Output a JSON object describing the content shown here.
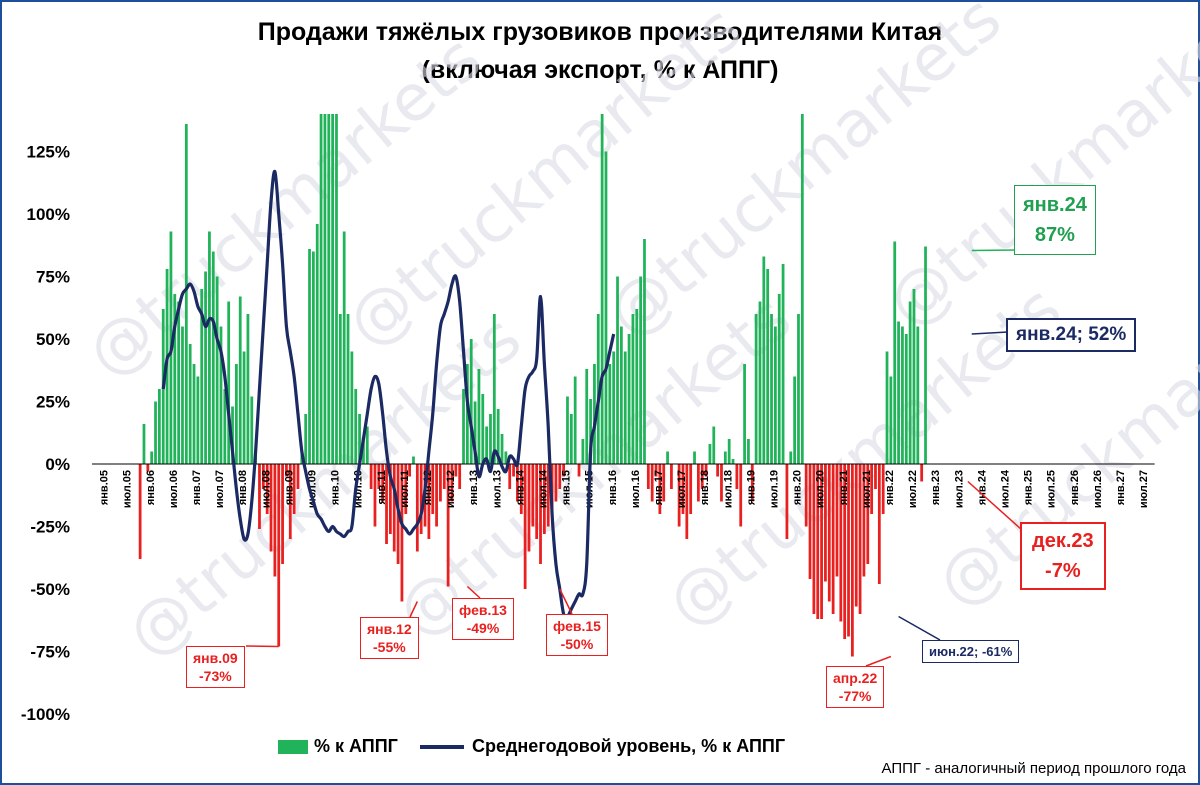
{
  "chart_data": {
    "type": "bar",
    "title": "Продажи тяжёлых грузовиков производителями Китая",
    "subtitle": "(включая экспорт, % к АППГ)",
    "ylim": [
      -100,
      140
    ],
    "yticks": [
      "125%",
      "100%",
      "75%",
      "50%",
      "25%",
      "0%",
      "-25%",
      "-50%",
      "-75%",
      "-100%"
    ],
    "ytick_values": [
      125,
      100,
      75,
      50,
      25,
      0,
      -25,
      -50,
      -75,
      -100
    ],
    "xtick_labels": [
      "янв.05",
      "июл.05",
      "янв.06",
      "июл.06",
      "янв.07",
      "июл.07",
      "янв.08",
      "июл.08",
      "янв.09",
      "июл.09",
      "янв.10",
      "июл.10",
      "янв.11",
      "июл.11",
      "янв.12",
      "июл.12",
      "янв.13",
      "июл.13",
      "янв.14",
      "июл.14",
      "янв.15",
      "июл.15",
      "янв.16",
      "июл.16",
      "янв.17",
      "июл.17",
      "янв.18",
      "июл.18",
      "янв.19",
      "июл.19",
      "янв.20",
      "июл.20",
      "янв.21",
      "июл.21",
      "янв.22",
      "июл.22",
      "янв.23",
      "июл.23",
      "янв.24",
      "июл.24",
      "янв.25",
      "июл.25",
      "янв.26",
      "июл.26",
      "янв.27",
      "июл.27"
    ],
    "grid": false,
    "series": [
      {
        "name": "% к АППГ",
        "kind": "bar",
        "x_start": "янв.05",
        "values": [
          0,
          0,
          0,
          0,
          0,
          0,
          0,
          0,
          0,
          0,
          0,
          0,
          -38,
          16,
          -3,
          5,
          25,
          30,
          62,
          78,
          93,
          68,
          65,
          55,
          136,
          48,
          40,
          35,
          70,
          77,
          93,
          85,
          75,
          55,
          30,
          65,
          23,
          40,
          67,
          45,
          60,
          27,
          5,
          -26,
          -10,
          -20,
          -35,
          -45,
          -73,
          -40,
          -5,
          -30,
          -20,
          -10,
          5,
          20,
          86,
          85,
          96,
          140,
          140,
          140,
          140,
          140,
          60,
          93,
          60,
          45,
          30,
          20,
          10,
          15,
          -10,
          -25,
          -10,
          -15,
          -32,
          -28,
          -35,
          -40,
          -55,
          -20,
          -5,
          3,
          -35,
          -28,
          -25,
          -30,
          -20,
          -25,
          -15,
          -10,
          -49,
          -15,
          -5,
          -10,
          30,
          40,
          50,
          25,
          38,
          28,
          15,
          20,
          60,
          22,
          12,
          5,
          -10,
          -5,
          -15,
          -20,
          -50,
          -35,
          -25,
          -30,
          -40,
          -28,
          -25,
          -20,
          -15,
          -10,
          -5,
          27,
          20,
          35,
          -5,
          10,
          38,
          26,
          40,
          60,
          140,
          125,
          40,
          45,
          75,
          55,
          45,
          52,
          60,
          62,
          75,
          90,
          -10,
          -15,
          -5,
          -20,
          -15,
          5,
          -10,
          0,
          -25,
          -20,
          -30,
          -20,
          5,
          -15,
          -10,
          -5,
          8,
          15,
          -5,
          -15,
          5,
          10,
          2,
          -10,
          -25,
          40,
          10,
          -15,
          60,
          65,
          83,
          78,
          60,
          55,
          68,
          80,
          -30,
          5,
          35,
          60,
          140,
          -25,
          -46,
          -60,
          -62,
          -62,
          -47,
          -55,
          -60,
          -45,
          -63,
          -70,
          -69,
          -77,
          -57,
          -60,
          -45,
          -40,
          -20,
          -10,
          -48,
          -20,
          45,
          35,
          89,
          57,
          55,
          52,
          65,
          70,
          55,
          -7,
          87
        ],
        "color": "#21b35a",
        "negative_color": "#e8201f"
      },
      {
        "name": "Среднегодовой уровень, % к АППГ",
        "kind": "line",
        "color": "#1b2a63",
        "x_start": "июл.06",
        "values": [
          30,
          42,
          45,
          55,
          62,
          68,
          70,
          72,
          69,
          63,
          60,
          55,
          58,
          57,
          50,
          45,
          35,
          20,
          5,
          -10,
          -22,
          -30,
          -28,
          -15,
          5,
          30,
          55,
          80,
          105,
          117,
          100,
          80,
          55,
          45,
          35,
          20,
          5,
          -3,
          -10,
          -15,
          -20,
          -22,
          -25,
          -27,
          -25,
          -27,
          -28,
          -29,
          -27,
          -25,
          -10,
          0,
          10,
          20,
          30,
          35,
          32,
          20,
          5,
          -5,
          -10,
          -18,
          -24,
          -26,
          -28,
          -26,
          -24,
          -20,
          -10,
          5,
          20,
          40,
          55,
          60,
          65,
          72,
          75,
          65,
          45,
          25,
          15,
          5,
          -5,
          0,
          2,
          -3,
          5,
          3,
          -1,
          -3,
          3,
          2,
          0,
          15,
          30,
          35,
          37,
          42,
          67,
          40,
          15,
          -20,
          -40,
          -50,
          -60,
          -61,
          -58,
          -55,
          -52,
          -52,
          -40,
          5,
          15,
          25,
          35,
          38,
          45,
          52
        ]
      }
    ],
    "annotations": [
      {
        "label": "янв.09",
        "value": "-73%"
      },
      {
        "label": "янв.12",
        "value": "-55%"
      },
      {
        "label": "фев.13",
        "value": "-49%"
      },
      {
        "label": "фев.15",
        "value": "-50%"
      },
      {
        "label": "апр.22",
        "value": "-77%"
      },
      {
        "label": "июн.22; -61%"
      },
      {
        "label": "дек.23",
        "value": "-7%"
      },
      {
        "label": "янв.24",
        "value": "87%"
      },
      {
        "label": "янв.24; 52%"
      }
    ]
  },
  "legend": {
    "bars": "% к АППГ",
    "line": "Среднегодовой уровень, % к АППГ"
  },
  "note": "АППГ - аналогичный период прошлого года",
  "watermark": "@truckmarkets",
  "colors": {
    "positive": "#21b35a",
    "negative": "#e8201f",
    "line": "#1b2a63",
    "frame": "#1f4e9a"
  }
}
